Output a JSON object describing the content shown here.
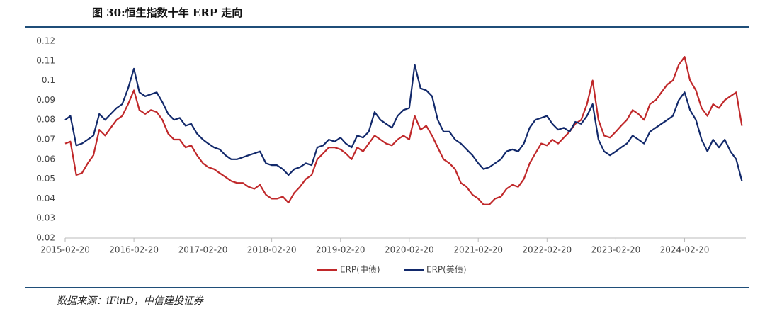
{
  "chart_data": {
    "type": "line",
    "title": "图 30:恒生指数十年 ERP 走向",
    "x": [
      "2015-02-20",
      "2015-03-20",
      "2015-04-20",
      "2015-05-20",
      "2015-06-20",
      "2015-07-20",
      "2015-08-20",
      "2015-09-20",
      "2015-10-20",
      "2015-11-20",
      "2015-12-20",
      "2016-01-20",
      "2016-02-20",
      "2016-03-20",
      "2016-04-20",
      "2016-05-20",
      "2016-06-20",
      "2016-07-20",
      "2016-08-20",
      "2016-09-20",
      "2016-10-20",
      "2016-11-20",
      "2016-12-20",
      "2017-01-20",
      "2017-02-20",
      "2017-03-20",
      "2017-04-20",
      "2017-05-20",
      "2017-06-20",
      "2017-07-20",
      "2017-08-20",
      "2017-09-20",
      "2017-10-20",
      "2017-11-20",
      "2017-12-20",
      "2018-01-20",
      "2018-02-20",
      "2018-03-20",
      "2018-04-20",
      "2018-05-20",
      "2018-06-20",
      "2018-07-20",
      "2018-08-20",
      "2018-09-20",
      "2018-10-20",
      "2018-11-20",
      "2018-12-20",
      "2019-01-20",
      "2019-02-20",
      "2019-03-20",
      "2019-04-20",
      "2019-05-20",
      "2019-06-20",
      "2019-07-20",
      "2019-08-20",
      "2019-09-20",
      "2019-10-20",
      "2019-11-20",
      "2019-12-20",
      "2020-01-20",
      "2020-02-20",
      "2020-03-20",
      "2020-04-20",
      "2020-05-20",
      "2020-06-20",
      "2020-07-20",
      "2020-08-20",
      "2020-09-20",
      "2020-10-20",
      "2020-11-20",
      "2020-12-20",
      "2021-01-20",
      "2021-02-20",
      "2021-03-20",
      "2021-04-20",
      "2021-05-20",
      "2021-06-20",
      "2021-07-20",
      "2021-08-20",
      "2021-09-20",
      "2021-10-20",
      "2021-11-20",
      "2021-12-20",
      "2022-01-20",
      "2022-02-20",
      "2022-03-20",
      "2022-04-20",
      "2022-05-20",
      "2022-06-20",
      "2022-07-20",
      "2022-08-20",
      "2022-09-20",
      "2022-10-20",
      "2022-11-20",
      "2022-12-20",
      "2023-01-20",
      "2023-02-20",
      "2023-03-20",
      "2023-04-20",
      "2023-05-20",
      "2023-06-20",
      "2023-07-20",
      "2023-08-20",
      "2023-09-20",
      "2023-10-20",
      "2023-11-20",
      "2023-12-20",
      "2024-01-20",
      "2024-02-20",
      "2024-03-20",
      "2024-04-20",
      "2024-05-20",
      "2024-06-20",
      "2024-07-20",
      "2024-08-20",
      "2024-09-20",
      "2024-10-20",
      "2024-11-20",
      "2024-12-20"
    ],
    "series": [
      {
        "name": "ERP(中债)",
        "color": "#c0282a",
        "values": [
          0.068,
          0.069,
          0.052,
          0.053,
          0.058,
          0.062,
          0.075,
          0.072,
          0.076,
          0.08,
          0.082,
          0.088,
          0.095,
          0.085,
          0.083,
          0.085,
          0.084,
          0.08,
          0.073,
          0.07,
          0.07,
          0.066,
          0.067,
          0.062,
          0.058,
          0.056,
          0.055,
          0.053,
          0.051,
          0.049,
          0.048,
          0.048,
          0.046,
          0.045,
          0.047,
          0.042,
          0.04,
          0.04,
          0.041,
          0.038,
          0.043,
          0.046,
          0.05,
          0.052,
          0.06,
          0.063,
          0.066,
          0.066,
          0.065,
          0.063,
          0.06,
          0.066,
          0.064,
          0.068,
          0.072,
          0.07,
          0.068,
          0.067,
          0.07,
          0.072,
          0.07,
          0.082,
          0.075,
          0.077,
          0.072,
          0.066,
          0.06,
          0.058,
          0.055,
          0.048,
          0.046,
          0.042,
          0.04,
          0.037,
          0.037,
          0.04,
          0.041,
          0.045,
          0.047,
          0.046,
          0.05,
          0.058,
          0.063,
          0.068,
          0.067,
          0.07,
          0.068,
          0.071,
          0.074,
          0.078,
          0.08,
          0.088,
          0.1,
          0.08,
          0.072,
          0.071,
          0.074,
          0.077,
          0.08,
          0.085,
          0.083,
          0.08,
          0.088,
          0.09,
          0.094,
          0.098,
          0.1,
          0.108,
          0.112,
          0.1,
          0.095,
          0.086,
          0.082,
          0.088,
          0.086,
          0.09,
          0.092,
          0.094,
          0.077
        ]
      },
      {
        "name": "ERP(美债)",
        "color": "#12296b",
        "values": [
          0.08,
          0.082,
          0.067,
          0.068,
          0.07,
          0.072,
          0.083,
          0.08,
          0.083,
          0.086,
          0.088,
          0.096,
          0.106,
          0.094,
          0.092,
          0.093,
          0.094,
          0.089,
          0.083,
          0.08,
          0.081,
          0.077,
          0.078,
          0.073,
          0.07,
          0.068,
          0.066,
          0.065,
          0.062,
          0.06,
          0.06,
          0.061,
          0.062,
          0.063,
          0.064,
          0.058,
          0.057,
          0.057,
          0.055,
          0.052,
          0.055,
          0.056,
          0.058,
          0.057,
          0.066,
          0.067,
          0.07,
          0.069,
          0.071,
          0.068,
          0.066,
          0.072,
          0.071,
          0.074,
          0.084,
          0.08,
          0.078,
          0.076,
          0.082,
          0.085,
          0.086,
          0.108,
          0.096,
          0.095,
          0.092,
          0.08,
          0.074,
          0.074,
          0.07,
          0.068,
          0.065,
          0.062,
          0.058,
          0.055,
          0.056,
          0.058,
          0.06,
          0.064,
          0.065,
          0.064,
          0.068,
          0.076,
          0.08,
          0.081,
          0.082,
          0.078,
          0.075,
          0.076,
          0.074,
          0.079,
          0.078,
          0.082,
          0.088,
          0.07,
          0.064,
          0.062,
          0.064,
          0.066,
          0.068,
          0.072,
          0.07,
          0.068,
          0.074,
          0.076,
          0.078,
          0.08,
          0.082,
          0.09,
          0.094,
          0.085,
          0.08,
          0.07,
          0.064,
          0.07,
          0.066,
          0.07,
          0.064,
          0.06,
          0.049
        ]
      }
    ],
    "xlim": [
      "2015-02-20",
      "2025-01-10"
    ],
    "xticks": [
      "2015-02-20",
      "2016-02-20",
      "2017-02-20",
      "2018-02-20",
      "2019-02-20",
      "2020-02-20",
      "2021-02-20",
      "2022-02-20",
      "2023-02-20",
      "2024-02-20"
    ],
    "ylim": [
      0.02,
      0.12
    ],
    "yticks": [
      0.02,
      0.03,
      0.04,
      0.05,
      0.06,
      0.07,
      0.08,
      0.09,
      0.1,
      0.11,
      0.12
    ],
    "legend": "bottom"
  },
  "source": "数据来源：iFinD，中信建投证券"
}
